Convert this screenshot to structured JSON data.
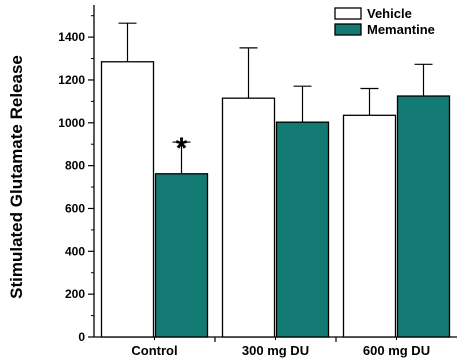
{
  "chart_data": {
    "type": "bar",
    "title": "",
    "xlabel": "",
    "ylabel": "Stimulated Glutamate Release",
    "categories": [
      "Control",
      "300 mg DU",
      "600 mg DU"
    ],
    "ylim": [
      0,
      1550
    ],
    "yticks": [
      0,
      200,
      400,
      600,
      800,
      1000,
      1200,
      1400
    ],
    "minor_ticks": true,
    "grid": false,
    "legend": {
      "position": "top-right"
    },
    "series": [
      {
        "name": "Vehicle",
        "color": "#ffffff",
        "values": [
          1285,
          1115,
          1035
        ],
        "errors": [
          180,
          235,
          125
        ]
      },
      {
        "name": "Memantine",
        "color": "#127a72",
        "values": [
          762,
          1003,
          1125
        ],
        "errors": [
          148,
          168,
          148
        ]
      }
    ],
    "annotations": [
      {
        "text": "*",
        "category": "Control",
        "series": "Memantine"
      }
    ]
  }
}
